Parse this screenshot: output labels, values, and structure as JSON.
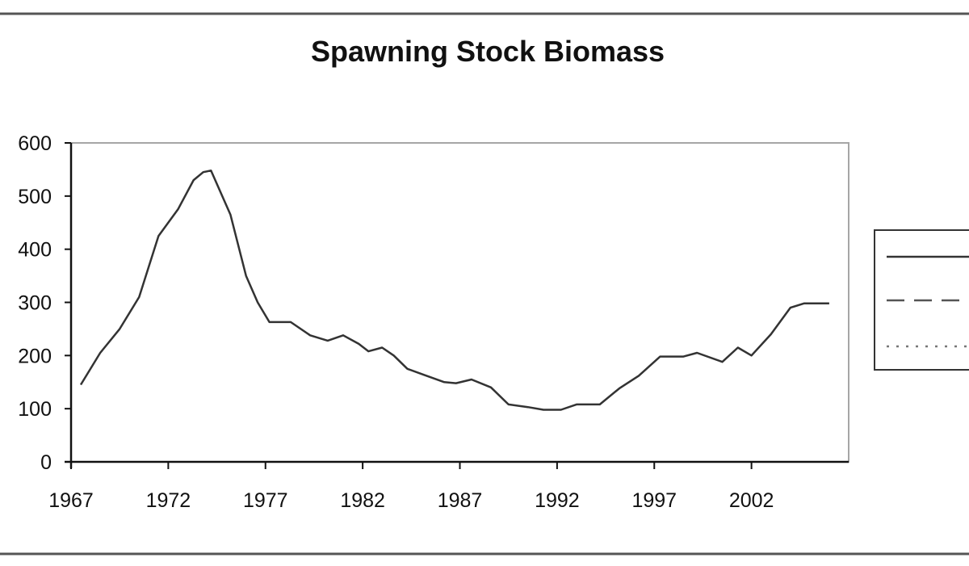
{
  "chart_data": {
    "type": "line",
    "title": "Spawning Stock Biomass",
    "xlabel": "",
    "ylabel": "",
    "xlim": [
      1967,
      2007
    ],
    "ylim": [
      0,
      600
    ],
    "x_ticks": [
      1967,
      1972,
      1977,
      1982,
      1987,
      1992,
      1997,
      2002
    ],
    "y_ticks": [
      0,
      100,
      200,
      300,
      400,
      500,
      600
    ],
    "grid": false,
    "legend_position": "right",
    "series": [
      {
        "style": "solid",
        "color": "#333333",
        "points": [
          [
            1967.5,
            145
          ],
          [
            1968.5,
            205
          ],
          [
            1969.5,
            250
          ],
          [
            1970.5,
            310
          ],
          [
            1971.5,
            425
          ],
          [
            1972.5,
            475
          ],
          [
            1973.3,
            530
          ],
          [
            1973.8,
            545
          ],
          [
            1974.2,
            548
          ],
          [
            1975.2,
            465
          ],
          [
            1976.0,
            350
          ],
          [
            1976.6,
            300
          ],
          [
            1977.2,
            263
          ],
          [
            1978.3,
            263
          ],
          [
            1979.3,
            238
          ],
          [
            1980.2,
            228
          ],
          [
            1981.0,
            238
          ],
          [
            1981.8,
            222
          ],
          [
            1982.3,
            208
          ],
          [
            1983.0,
            215
          ],
          [
            1983.6,
            200
          ],
          [
            1984.3,
            175
          ],
          [
            1985.2,
            163
          ],
          [
            1986.2,
            150
          ],
          [
            1986.8,
            148
          ],
          [
            1987.6,
            155
          ],
          [
            1988.6,
            140
          ],
          [
            1989.5,
            108
          ],
          [
            1990.5,
            103
          ],
          [
            1991.3,
            98
          ],
          [
            1992.2,
            98
          ],
          [
            1993.0,
            108
          ],
          [
            1994.2,
            108
          ],
          [
            1995.2,
            138
          ],
          [
            1996.2,
            162
          ],
          [
            1997.3,
            198
          ],
          [
            1998.5,
            198
          ],
          [
            1999.2,
            205
          ],
          [
            2000.5,
            188
          ],
          [
            2001.3,
            215
          ],
          [
            2002.0,
            200
          ],
          [
            2003.0,
            240
          ],
          [
            2004.0,
            290
          ],
          [
            2004.7,
            298
          ],
          [
            2006.0,
            298
          ]
        ]
      },
      {
        "style": "dashed",
        "color": "#555555",
        "points": []
      },
      {
        "style": "dotted",
        "color": "#777777",
        "points": []
      }
    ]
  }
}
